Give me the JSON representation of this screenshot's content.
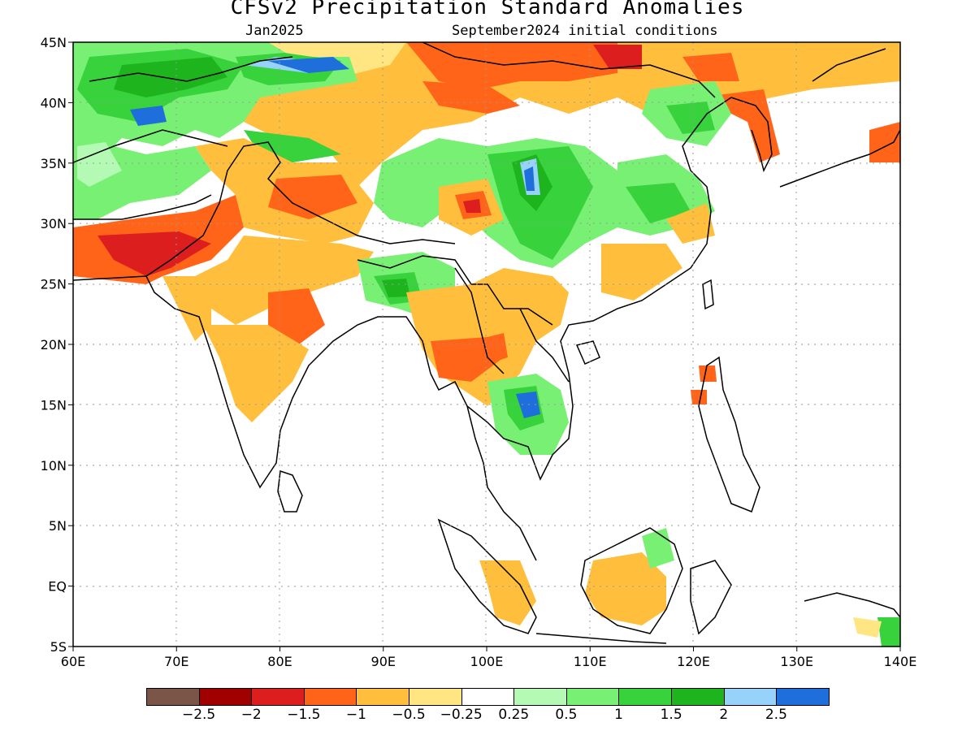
{
  "title": "CFSv2 Precipitation Standard Anomalies",
  "target_month": "Jan2025",
  "initial_conditions": "September2024 initial conditions",
  "map": {
    "lon_labels": [
      "60E",
      "70E",
      "80E",
      "90E",
      "100E",
      "110E",
      "120E",
      "130E",
      "140E"
    ],
    "lat_labels": [
      "45N",
      "40N",
      "35N",
      "30N",
      "25N",
      "20N",
      "15N",
      "10N",
      "5N",
      "EQ",
      "5S"
    ],
    "lon_range": [
      60,
      140
    ],
    "lat_range": [
      -5,
      45
    ],
    "gridlines": "dotted"
  },
  "legend": {
    "colors": [
      "#7a5548",
      "#a00000",
      "#dc1e1e",
      "#ff6419",
      "#ffbe3c",
      "#ffe682",
      "#ffffff",
      "#b4fab4",
      "#78f073",
      "#37d23c",
      "#1eb41e",
      "#96d2fa",
      "#1e6edc"
    ],
    "labels": [
      "−2.5",
      "−2",
      "−1.5",
      "−1",
      "−0.5",
      "−0.25",
      "0.25",
      "0.5",
      "1",
      "1.5",
      "2",
      "2.5"
    ]
  }
}
